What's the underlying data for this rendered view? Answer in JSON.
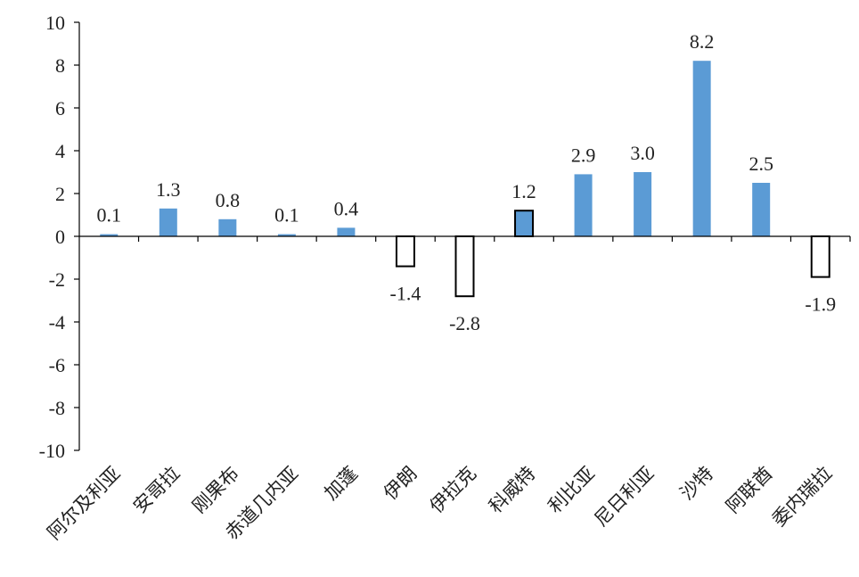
{
  "chart_data": {
    "type": "bar",
    "categories": [
      "阿尔及利亚",
      "安哥拉",
      "刚果布",
      "赤道几内亚",
      "加蓬",
      "伊朗",
      "伊拉克",
      "科威特",
      "利比亚",
      "尼日利亚",
      "沙特",
      "阿联酋",
      "委内瑞拉"
    ],
    "values": [
      0.1,
      1.3,
      0.8,
      0.1,
      0.4,
      -1.4,
      -2.8,
      1.2,
      2.9,
      3.0,
      8.2,
      2.5,
      -1.9
    ],
    "data_labels": [
      "0.1",
      "1.3",
      "0.8",
      "0.1",
      "0.4",
      "-1.4",
      "-2.8",
      "1.2",
      "2.9",
      "3.0",
      "8.2",
      "2.5",
      "-1.9"
    ],
    "ylim": [
      -10,
      10
    ],
    "yticks": [
      "10",
      "8",
      "6",
      "4",
      "2",
      "0",
      "-2",
      "-4",
      "-6",
      "-8",
      "-10"
    ],
    "grid": false,
    "title": "",
    "xlabel": "",
    "ylabel": "",
    "colors": {
      "bar_fill": "#5B9BD5",
      "highlight_fill": "#5B9BD5",
      "negative_fill": "#FFFFFF",
      "bar_stroke": "#000000",
      "axis": "#000000",
      "text": "#222222"
    },
    "bar_styles": [
      "filled",
      "filled",
      "filled",
      "filled",
      "filled",
      "outline",
      "outline",
      "filled-outlined",
      "filled",
      "filled",
      "filled",
      "filled",
      "outline"
    ]
  }
}
